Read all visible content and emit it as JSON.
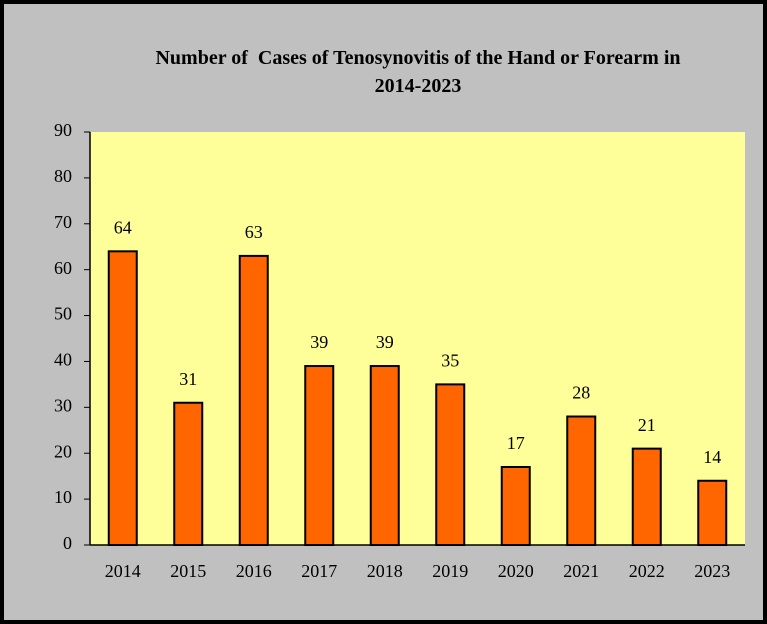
{
  "chart_data": {
    "type": "bar",
    "title": "Number of  Cases of Tenosynovitis of the Hand or Forearm in 2014-2023",
    "categories": [
      "2014",
      "2015",
      "2016",
      "2017",
      "2018",
      "2019",
      "2020",
      "2021",
      "2022",
      "2023"
    ],
    "values": [
      64,
      31,
      63,
      39,
      39,
      35,
      17,
      28,
      21,
      14
    ],
    "color": "#ff6600",
    "ylim": [
      0,
      90
    ],
    "yticks": [
      0,
      10,
      20,
      30,
      40,
      50,
      60,
      70,
      80,
      90
    ],
    "grid": false,
    "data_labels": true
  }
}
